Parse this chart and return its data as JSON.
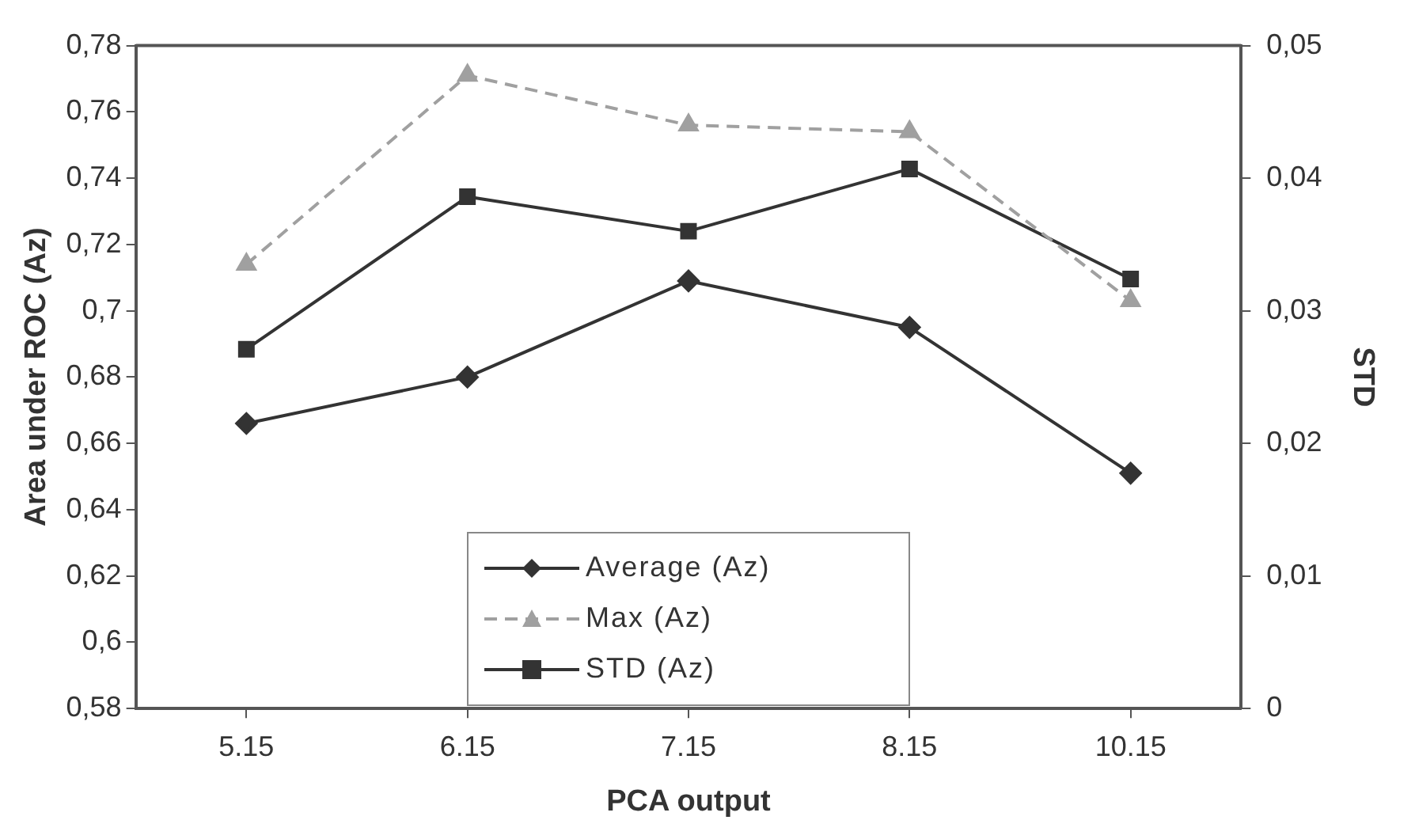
{
  "chart_data": {
    "type": "line",
    "xlabel": "PCA output",
    "ylabel": "Area under ROC (Az)",
    "y2label": "STD",
    "categories": [
      "5.15",
      "6.15",
      "7.15",
      "8.15",
      "10.15"
    ],
    "series": [
      {
        "name": "Average (Az)",
        "color": "#333333",
        "values": [
          0.666,
          0.68,
          0.709,
          0.695,
          0.651
        ],
        "marker": "diamond",
        "line_style": "solid"
      },
      {
        "name": "Max (Az)",
        "color": "#a0a0a0",
        "values": [
          0.714,
          0.771,
          0.756,
          0.754,
          0.703
        ],
        "marker": "triangle",
        "line_style": "dashed"
      },
      {
        "name": "STD (Az)",
        "color": "#333333",
        "values": [
          0.0271,
          0.0386,
          0.036,
          0.0407,
          0.0324
        ],
        "marker": "square",
        "line_style": "solid",
        "axis": "y2"
      }
    ],
    "ylim": [
      0.58,
      0.78
    ],
    "yticks": [
      {
        "value": 0.58,
        "label": "0,58"
      },
      {
        "value": 0.6,
        "label": "0,6"
      },
      {
        "value": 0.62,
        "label": "0,62"
      },
      {
        "value": 0.64,
        "label": "0,64"
      },
      {
        "value": 0.66,
        "label": "0,66"
      },
      {
        "value": 0.68,
        "label": "0,68"
      },
      {
        "value": 0.7,
        "label": "0,7"
      },
      {
        "value": 0.72,
        "label": "0,72"
      },
      {
        "value": 0.74,
        "label": "0,74"
      },
      {
        "value": 0.76,
        "label": "0,76"
      },
      {
        "value": 0.78,
        "label": "0,78"
      }
    ],
    "y2lim": [
      0,
      0.05
    ],
    "y2ticks": [
      0,
      {
        "value": 0.01,
        "label": "0,01"
      },
      {
        "value": 0.02,
        "label": "0,02"
      },
      {
        "value": 0.03,
        "label": "0,03"
      },
      {
        "value": 0.04,
        "label": "0,04"
      },
      {
        "value": 0.05,
        "label": "0,05"
      }
    ],
    "grid": false,
    "legend": "bottom"
  }
}
